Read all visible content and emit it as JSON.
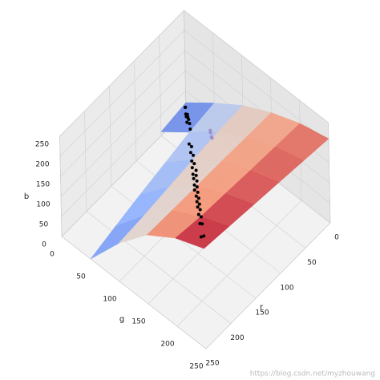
{
  "chart_data": {
    "type": "surface3d",
    "xlabel": "r",
    "ylabel": "g",
    "zlabel": "b",
    "xlim": [
      0,
      250
    ],
    "ylim": [
      0,
      250
    ],
    "zlim": [
      0,
      250
    ],
    "xticks": [
      0,
      50,
      100,
      150,
      200,
      250
    ],
    "yticks": [
      0,
      50,
      100,
      150,
      200,
      250
    ],
    "zticks": [
      0,
      50,
      100,
      150,
      200,
      250
    ],
    "grid": true,
    "surface": {
      "colormap": "coolwarm",
      "x": [
        0,
        50,
        100,
        150,
        200,
        250
      ],
      "y": [
        0,
        50,
        100,
        150,
        200,
        250
      ],
      "z": [
        [
          20,
          75,
          125,
          163,
          192,
          210
        ],
        [
          10,
          65,
          122,
          165,
          196,
          218
        ],
        [
          null,
          50,
          115,
          167,
          200,
          226
        ],
        [
          null,
          35,
          108,
          168,
          205,
          234
        ],
        [
          null,
          18,
          100,
          170,
          210,
          242
        ],
        [
          null,
          0,
          95,
          172,
          220,
          250
        ]
      ]
    },
    "series": [
      {
        "color": "#000000",
        "x": [
          3,
          6,
          8,
          10,
          12,
          15,
          18,
          22,
          26,
          30,
          60,
          68,
          75,
          82,
          90,
          96,
          102,
          108,
          112,
          118,
          122,
          128,
          132,
          138,
          142,
          148,
          152,
          158,
          162,
          168,
          172,
          178,
          185,
          192,
          200,
          210,
          222,
          235
        ],
        "y": [
          5,
          4,
          10,
          8,
          15,
          13,
          22,
          20,
          30,
          28,
          62,
          65,
          78,
          80,
          93,
          94,
          100,
          112,
          110,
          121,
          120,
          131,
          130,
          140,
          139,
          150,
          155,
          156,
          165,
          166,
          175,
          176,
          188,
          190,
          203,
          208,
          225,
          232
        ],
        "z": [
          0,
          20,
          5,
          30,
          10,
          25,
          15,
          35,
          20,
          40,
          55,
          75,
          70,
          88,
          85,
          100,
          98,
          112,
          105,
          122,
          118,
          132,
          126,
          140,
          136,
          150,
          146,
          160,
          155,
          170,
          165,
          180,
          178,
          195,
          196,
          215,
          218,
          240
        ]
      },
      {
        "color": "#9b8fc8",
        "x": [
          18,
          22,
          25,
          28
        ],
        "y": [
          58,
          62,
          66,
          70
        ],
        "z": [
          38,
          42,
          40,
          45
        ]
      }
    ],
    "watermark": "https://blog.csdn.net/myzhouwang"
  }
}
